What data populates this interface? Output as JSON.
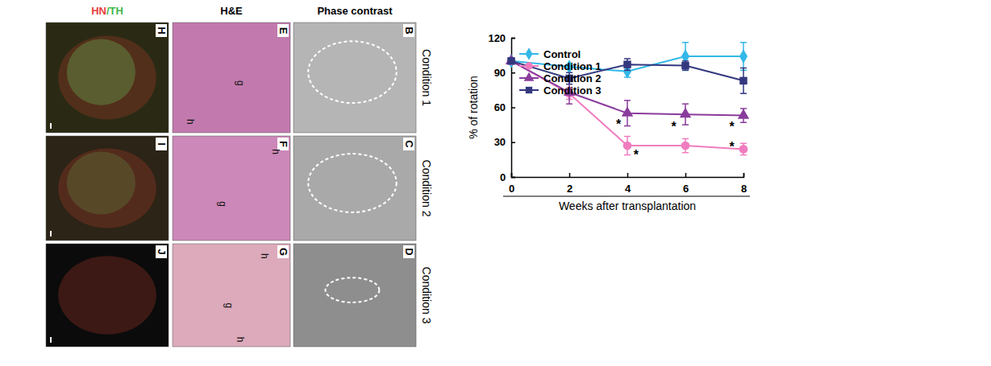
{
  "chart_data": {
    "type": "line",
    "x_label": "Weeks after transplantation",
    "y_label": "% of rotation",
    "x": [
      0,
      2,
      4,
      6,
      8
    ],
    "xlim": [
      0,
      8
    ],
    "xticks": [
      0,
      2,
      4,
      6,
      8
    ],
    "ylim": [
      0,
      120
    ],
    "yticks": [
      0,
      30,
      60,
      90,
      120
    ],
    "grid": false,
    "legend": "upper left",
    "series": [
      {
        "name": "Control",
        "color": "#33b8e8",
        "marker": "diamond",
        "values": [
          100,
          95,
          91,
          104,
          104
        ],
        "errors": [
          0,
          2,
          5,
          12,
          12
        ]
      },
      {
        "name": "Condition 1",
        "color": "#f07cbf",
        "marker": "circle",
        "values": [
          100,
          72,
          27,
          27,
          24
        ],
        "errors": [
          0,
          5,
          8,
          6,
          5
        ]
      },
      {
        "name": "Condition 2",
        "color": "#8a3c9c",
        "marker": "triangle",
        "values": [
          100,
          73,
          55,
          54,
          53
        ],
        "errors": [
          0,
          10,
          11,
          9,
          6
        ]
      },
      {
        "name": "Condition 3",
        "color": "#33387f",
        "marker": "square",
        "values": [
          100,
          85,
          97,
          96,
          83
        ],
        "errors": [
          0,
          5,
          5,
          4,
          11
        ]
      }
    ],
    "annotations": [
      {
        "text": "*",
        "x": 3.7,
        "y": 47
      },
      {
        "text": "*",
        "x": 4.3,
        "y": 21
      },
      {
        "text": "*",
        "x": 5.6,
        "y": 45
      },
      {
        "text": "*",
        "x": 7.6,
        "y": 45
      },
      {
        "text": "*",
        "x": 7.6,
        "y": 28
      }
    ]
  },
  "figure": {
    "column_headers": [
      {
        "parts": [
          "HN",
          "/",
          "TH"
        ],
        "colors": [
          "#e8403a",
          "#3cb84a",
          "#3cb84a"
        ]
      },
      {
        "parts": [
          "H&E"
        ],
        "colors": [
          "#000000"
        ]
      },
      {
        "parts": [
          "Phase contrast"
        ],
        "colors": [
          "#000000"
        ]
      }
    ],
    "rows": [
      {
        "label": "Condition 1",
        "panels": [
          {
            "letter": "H",
            "labels": []
          },
          {
            "letter": "E",
            "labels": [
              "g",
              "h"
            ]
          },
          {
            "letter": "B",
            "labels": []
          }
        ]
      },
      {
        "label": "Condition 2",
        "panels": [
          {
            "letter": "I",
            "labels": []
          },
          {
            "letter": "F",
            "labels": [
              "h",
              "g"
            ]
          },
          {
            "letter": "C",
            "labels": []
          }
        ]
      },
      {
        "label": "Condition 3",
        "panels": [
          {
            "letter": "J",
            "labels": []
          },
          {
            "letter": "G",
            "labels": [
              "h",
              "g",
              "h"
            ]
          },
          {
            "letter": "D",
            "labels": []
          }
        ]
      }
    ]
  }
}
